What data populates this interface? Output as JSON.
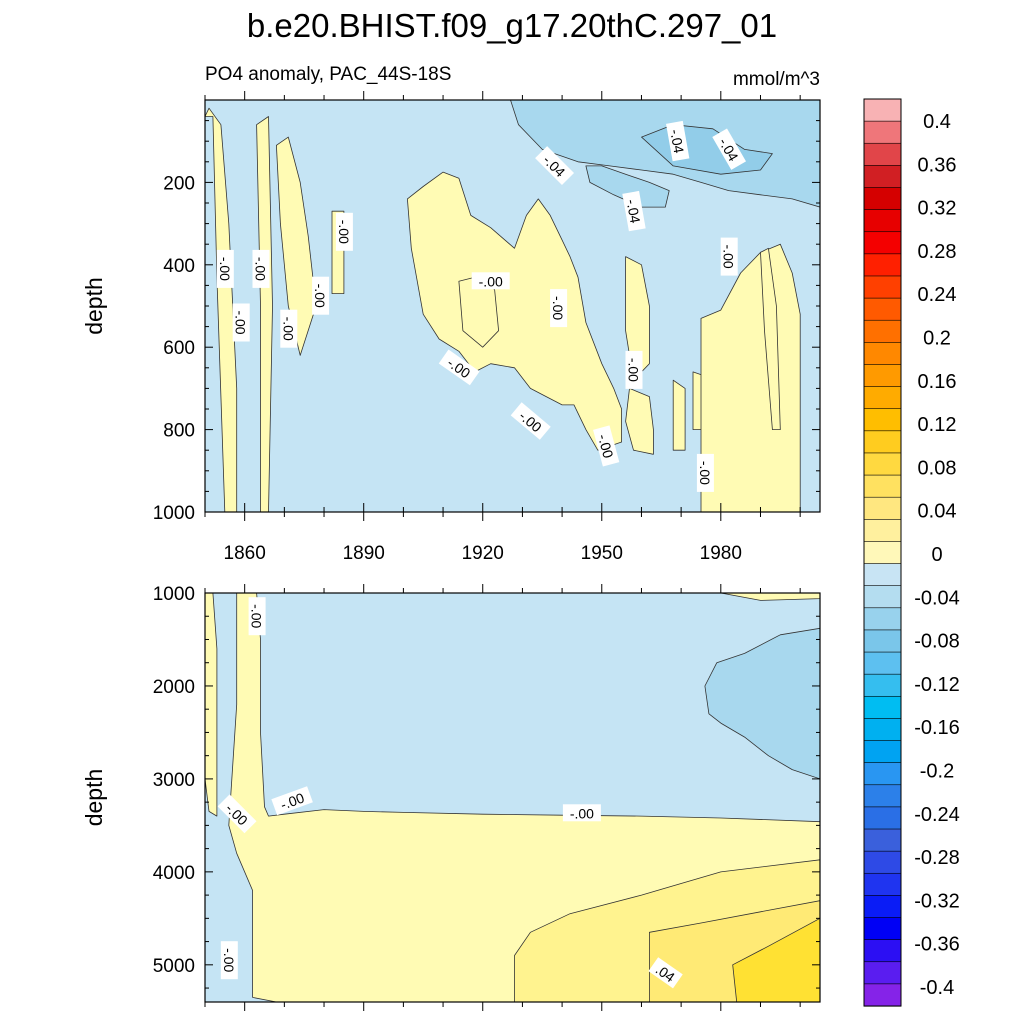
{
  "figure": {
    "title": "b.e20.BHIST.f09_g17.20thC.297_01",
    "subtitle_left": "PO4 anomaly, PAC_44S-18S",
    "subtitle_right": "mmol/m^3"
  },
  "chart_data": [
    {
      "type": "heatmap",
      "panel": "upper",
      "title": "PO4 anomaly, PAC_44S-18S",
      "units": "mmol/m^3",
      "xlabel": "",
      "ylabel": "depth",
      "xlim": [
        1850,
        2005
      ],
      "ylim": [
        1000,
        0
      ],
      "x_ticks": [
        1860,
        1890,
        1920,
        1950,
        1980
      ],
      "y_ticks": [
        200,
        400,
        600,
        800,
        1000
      ],
      "background_value": -0.01,
      "positive_regions": [
        {
          "value": 0.01,
          "points": [
            [
              1850,
              40
            ],
            [
              1852,
              40
            ],
            [
              1853,
              430
            ],
            [
              1855,
              1000
            ],
            [
              1858,
              1000
            ],
            [
              1858,
              700
            ],
            [
              1856,
              300
            ],
            [
              1854,
              60
            ],
            [
              1851,
              20
            ]
          ]
        },
        {
          "value": 0.01,
          "points": [
            [
              1863,
              60
            ],
            [
              1866,
              40
            ],
            [
              1867,
              500
            ],
            [
              1866,
              1000
            ],
            [
              1864,
              1000
            ],
            [
              1864,
              500
            ]
          ]
        },
        {
          "value": 0.01,
          "points": [
            [
              1868,
              110
            ],
            [
              1871,
              90
            ],
            [
              1874,
              200
            ],
            [
              1876,
              330
            ],
            [
              1878,
              500
            ],
            [
              1874,
              620
            ],
            [
              1871,
              500
            ],
            [
              1869,
              300
            ]
          ]
        },
        {
          "value": 0.01,
          "points": [
            [
              1882,
              270
            ],
            [
              1885,
              270
            ],
            [
              1885,
              470
            ],
            [
              1882,
              470
            ]
          ]
        },
        {
          "value": 0.01,
          "points": [
            [
              1901,
              240
            ],
            [
              1905,
              210
            ],
            [
              1910,
              175
            ],
            [
              1914,
              190
            ],
            [
              1917,
              280
            ],
            [
              1922,
              310
            ],
            [
              1928,
              360
            ],
            [
              1931,
              280
            ],
            [
              1934,
              240
            ],
            [
              1937,
              280
            ],
            [
              1940,
              340
            ],
            [
              1942,
              380
            ],
            [
              1944,
              430
            ],
            [
              1946,
              540
            ],
            [
              1950,
              640
            ],
            [
              1953,
              700
            ],
            [
              1955,
              750
            ],
            [
              1955,
              830
            ],
            [
              1949,
              850
            ],
            [
              1946,
              800
            ],
            [
              1943,
              740
            ],
            [
              1940,
              740
            ],
            [
              1936,
              720
            ],
            [
              1932,
              700
            ],
            [
              1928,
              650
            ],
            [
              1922,
              640
            ],
            [
              1918,
              660
            ],
            [
              1914,
              610
            ],
            [
              1909,
              580
            ],
            [
              1905,
              520
            ],
            [
              1902,
              360
            ]
          ]
        },
        {
          "value": 0.01,
          "points": [
            [
              1914,
              440
            ],
            [
              1918,
              430
            ],
            [
              1923,
              460
            ],
            [
              1924,
              560
            ],
            [
              1920,
              600
            ],
            [
              1915,
              560
            ]
          ]
        },
        {
          "value": 0.01,
          "points": [
            [
              1956,
              380
            ],
            [
              1960,
              400
            ],
            [
              1962,
              500
            ],
            [
              1962,
              640
            ],
            [
              1958,
              680
            ],
            [
              1956,
              560
            ]
          ]
        },
        {
          "value": 0.01,
          "points": [
            [
              1957,
              700
            ],
            [
              1962,
              720
            ],
            [
              1963,
              800
            ],
            [
              1963,
              860
            ],
            [
              1958,
              850
            ],
            [
              1956,
              780
            ]
          ]
        },
        {
          "value": 0.01,
          "points": [
            [
              1968,
              680
            ],
            [
              1971,
              700
            ],
            [
              1971,
              850
            ],
            [
              1968,
              850
            ]
          ]
        },
        {
          "value": 0.01,
          "points": [
            [
              1973,
              660
            ],
            [
              1976,
              670
            ],
            [
              1976,
              800
            ],
            [
              1973,
              800
            ]
          ]
        },
        {
          "value": 0.01,
          "points": [
            [
              1975,
              530
            ],
            [
              1980,
              510
            ],
            [
              1985,
              420
            ],
            [
              1990,
              370
            ],
            [
              1995,
              350
            ],
            [
              1998,
              420
            ],
            [
              2000,
              520
            ],
            [
              2000,
              1000
            ],
            [
              1975,
              1000
            ]
          ]
        },
        {
          "value": 0.01,
          "points": [
            [
              1990,
              370
            ],
            [
              1992,
              360
            ],
            [
              1994,
              500
            ],
            [
              1995,
              800
            ],
            [
              1993,
              800
            ],
            [
              1991,
              560
            ]
          ]
        }
      ],
      "negative_regions": [
        {
          "value": -0.03,
          "points": [
            [
              1927,
              0
            ],
            [
              2005,
              0
            ],
            [
              2005,
              260
            ],
            [
              1998,
              240
            ],
            [
              1990,
              230
            ],
            [
              1982,
              220
            ],
            [
              1975,
              200
            ],
            [
              1968,
              180
            ],
            [
              1960,
              170
            ],
            [
              1952,
              160
            ],
            [
              1944,
              150
            ],
            [
              1935,
              120
            ],
            [
              1929,
              60
            ]
          ]
        },
        {
          "value": -0.03,
          "points": [
            [
              1946,
              160
            ],
            [
              1950,
              160
            ],
            [
              1956,
              180
            ],
            [
              1962,
              200
            ],
            [
              1967,
              220
            ],
            [
              1966,
              260
            ],
            [
              1960,
              260
            ],
            [
              1953,
              230
            ],
            [
              1947,
              200
            ]
          ]
        },
        {
          "value": -0.05,
          "points": [
            [
              1960,
              90
            ],
            [
              1968,
              60
            ],
            [
              1978,
              70
            ],
            [
              1986,
              120
            ],
            [
              1993,
              130
            ],
            [
              1990,
              170
            ],
            [
              1980,
              180
            ],
            [
              1968,
              160
            ]
          ]
        }
      ],
      "contour_labels": [
        {
          "text": "-.00",
          "x": 1855,
          "y": 410,
          "angle": 90
        },
        {
          "text": "-.00",
          "x": 1864,
          "y": 410,
          "angle": 90
        },
        {
          "text": "-.00",
          "x": 1859,
          "y": 540,
          "angle": 90
        },
        {
          "text": "-.00",
          "x": 1871,
          "y": 555,
          "angle": 90
        },
        {
          "text": "-.00",
          "x": 1879,
          "y": 475,
          "angle": 90
        },
        {
          "text": "-.00",
          "x": 1885,
          "y": 320,
          "angle": 90
        },
        {
          "text": "-.00",
          "x": 1922,
          "y": 440,
          "angle": 0
        },
        {
          "text": "-.00",
          "x": 1939,
          "y": 505,
          "angle": 90
        },
        {
          "text": "-.00",
          "x": 1914,
          "y": 650,
          "angle": 35
        },
        {
          "text": "-.00",
          "x": 1932,
          "y": 780,
          "angle": 40
        },
        {
          "text": "-.00",
          "x": 1951,
          "y": 840,
          "angle": 75
        },
        {
          "text": "-.00",
          "x": 1958,
          "y": 655,
          "angle": 90
        },
        {
          "text": "-.00",
          "x": 1976,
          "y": 905,
          "angle": 90
        },
        {
          "text": "-.00",
          "x": 1982,
          "y": 380,
          "angle": 90
        },
        {
          "text": "-.04",
          "x": 1938,
          "y": 160,
          "angle": 45
        },
        {
          "text": "-.04",
          "x": 1958,
          "y": 270,
          "angle": 80
        },
        {
          "text": "-.04",
          "x": 1969,
          "y": 100,
          "angle": 80
        },
        {
          "text": "-.04",
          "x": 1982,
          "y": 120,
          "angle": 60
        }
      ]
    },
    {
      "type": "heatmap",
      "panel": "lower",
      "xlabel": "",
      "ylabel": "depth",
      "xlim": [
        1850,
        2005
      ],
      "ylim": [
        5400,
        1000
      ],
      "y_ticks": [
        1000,
        2000,
        3000,
        4000,
        5000
      ],
      "background_value": -0.01,
      "positive_regions": [
        {
          "value": 0.01,
          "points": [
            [
              1850,
              1000
            ],
            [
              1852,
              1000
            ],
            [
              1853,
              1600
            ],
            [
              1853,
              3400
            ],
            [
              1851,
              3350
            ],
            [
              1850,
              3000
            ]
          ]
        },
        {
          "value": 0.01,
          "points": [
            [
              1858,
              1000
            ],
            [
              1863,
              1000
            ],
            [
              1864,
              1500
            ],
            [
              1864,
              2500
            ],
            [
              1865,
              3300
            ],
            [
              1866,
              3400
            ],
            [
              1870,
              3380
            ],
            [
              1880,
              3330
            ],
            [
              1890,
              3350
            ],
            [
              1900,
              3360
            ],
            [
              1920,
              3380
            ],
            [
              1940,
              3390
            ],
            [
              1960,
              3400
            ],
            [
              1980,
              3420
            ],
            [
              2005,
              3460
            ],
            [
              2005,
              5400
            ],
            [
              1868,
              5400
            ],
            [
              1862,
              5350
            ],
            [
              1862,
              4200
            ],
            [
              1858,
              3800
            ],
            [
              1856,
              3500
            ],
            [
              1858,
              2200
            ]
          ]
        },
        {
          "value": 0.01,
          "points": [
            [
              1980,
              1000
            ],
            [
              2005,
              1000
            ],
            [
              2005,
              1060
            ],
            [
              1990,
              1080
            ]
          ]
        },
        {
          "value": 0.03,
          "points": [
            [
              1928,
              5400
            ],
            [
              1928,
              4900
            ],
            [
              1932,
              4650
            ],
            [
              1942,
              4450
            ],
            [
              1960,
              4250
            ],
            [
              1980,
              4000
            ],
            [
              2005,
              3870
            ],
            [
              2005,
              5400
            ]
          ]
        },
        {
          "value": 0.05,
          "points": [
            [
              1962,
              5400
            ],
            [
              1962,
              4650
            ],
            [
              1975,
              4550
            ],
            [
              1990,
              4430
            ],
            [
              2005,
              4310
            ],
            [
              2005,
              5400
            ]
          ]
        },
        {
          "value": 0.07,
          "points": [
            [
              1984,
              5400
            ],
            [
              1983,
              5000
            ],
            [
              1992,
              4800
            ],
            [
              2005,
              4500
            ],
            [
              2005,
              5400
            ]
          ]
        }
      ],
      "negative_regions": [
        {
          "value": -0.03,
          "points": [
            [
              1977,
              2300
            ],
            [
              1976,
              2000
            ],
            [
              1979,
              1750
            ],
            [
              1986,
              1650
            ],
            [
              1995,
              1450
            ],
            [
              2005,
              1380
            ],
            [
              2005,
              3000
            ],
            [
              1998,
              2900
            ],
            [
              1992,
              2750
            ],
            [
              1986,
              2550
            ],
            [
              1980,
              2400
            ]
          ]
        }
      ],
      "contour_labels": [
        {
          "text": "-.00",
          "x": 1863,
          "y": 1250,
          "angle": 90
        },
        {
          "text": "-.00",
          "x": 1858,
          "y": 3380,
          "angle": 45
        },
        {
          "text": "-.00",
          "x": 1872,
          "y": 3240,
          "angle": -20
        },
        {
          "text": "-.00",
          "x": 1945,
          "y": 3370,
          "angle": 0
        },
        {
          "text": "-.00",
          "x": 1856,
          "y": 4950,
          "angle": 90
        },
        {
          "text": ".04",
          "x": 1966,
          "y": 5090,
          "angle": 35
        }
      ]
    }
  ],
  "colorbar": {
    "levels": [
      "0.4",
      "0.36",
      "0.32",
      "0.28",
      "0.24",
      "0.2",
      "0.16",
      "0.12",
      "0.08",
      "0.04",
      "0",
      "-0.04",
      "-0.08",
      "-0.12",
      "-0.16",
      "-0.2",
      "-0.24",
      "-0.28",
      "-0.32",
      "-0.36",
      "-0.4"
    ],
    "colors": [
      "#f8b2b4",
      "#ef767a",
      "#e14549",
      "#d11f23",
      "#d50000",
      "#e70000",
      "#f40000",
      "#ff2000",
      "#ff4000",
      "#ff5a00",
      "#ff7000",
      "#ff8800",
      "#ff9a00",
      "#ffab00",
      "#ffbe00",
      "#ffcc1f",
      "#ffd940",
      "#ffe160",
      "#ffe780",
      "#fff09e",
      "#fff8b9",
      "#c8e4f4",
      "#b4ddf0",
      "#98d2ed",
      "#7ac6ea",
      "#5dc0f0",
      "#35beef",
      "#00bdf2",
      "#00b0f0",
      "#00a3f2",
      "#2996f2",
      "#2c80e9",
      "#2a6fe6",
      "#3a60dc",
      "#2e4ae6",
      "#1f34f0",
      "#0a1cf6",
      "#0000f5",
      "#2c0ff3",
      "#5a1df0",
      "#8523e8"
    ]
  }
}
